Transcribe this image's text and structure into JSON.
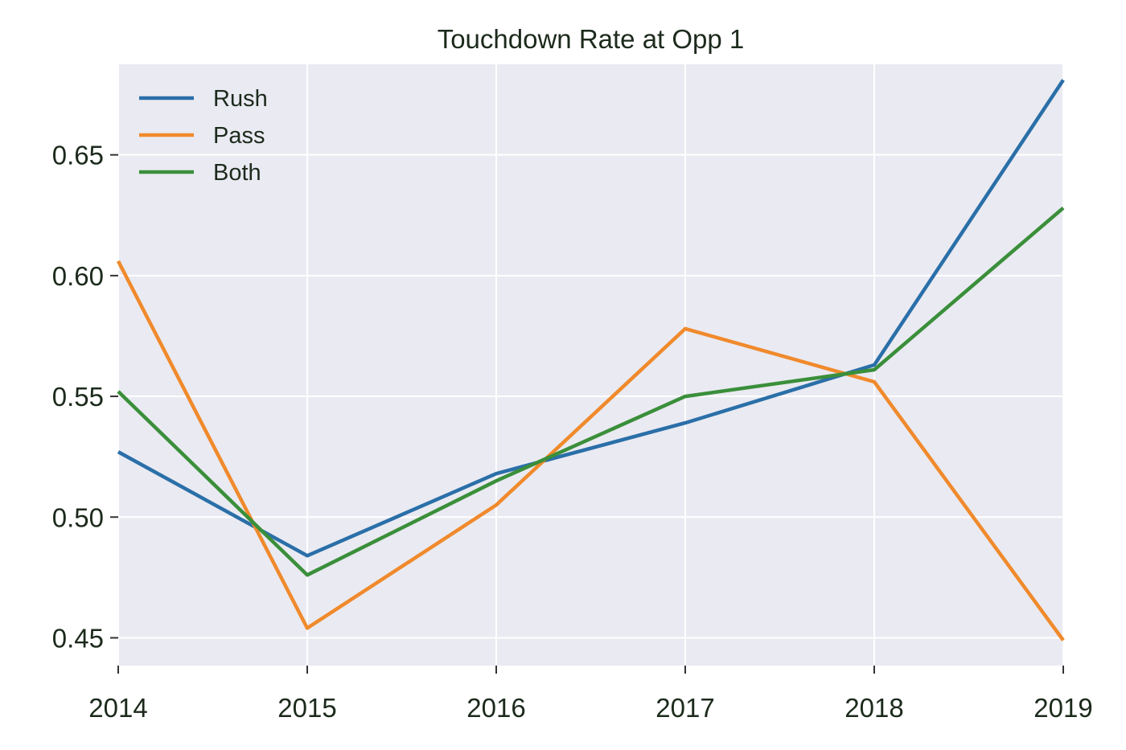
{
  "chart_data": {
    "type": "line",
    "title": "Touchdown Rate at Opp 1",
    "xlabel": "",
    "ylabel": "",
    "x": [
      "2014",
      "2015",
      "2016",
      "2017",
      "2018",
      "2019"
    ],
    "series": [
      {
        "name": "Rush",
        "color": "#2a6fa8",
        "values": [
          0.527,
          0.484,
          0.518,
          0.539,
          0.563,
          0.681
        ]
      },
      {
        "name": "Pass",
        "color": "#f08a2c",
        "values": [
          0.606,
          0.454,
          0.505,
          0.578,
          0.556,
          0.449
        ]
      },
      {
        "name": "Both",
        "color": "#3a8f3a",
        "values": [
          0.552,
          0.476,
          0.515,
          0.55,
          0.561,
          0.628
        ]
      }
    ],
    "yticks": [
      "0.45",
      "0.50",
      "0.55",
      "0.60",
      "0.65"
    ],
    "ylim": [
      0.4385,
      0.6875
    ],
    "grid": true,
    "legend_position": "top-left",
    "background_color": "#eaeaf2",
    "grid_color": "#ffffff"
  }
}
